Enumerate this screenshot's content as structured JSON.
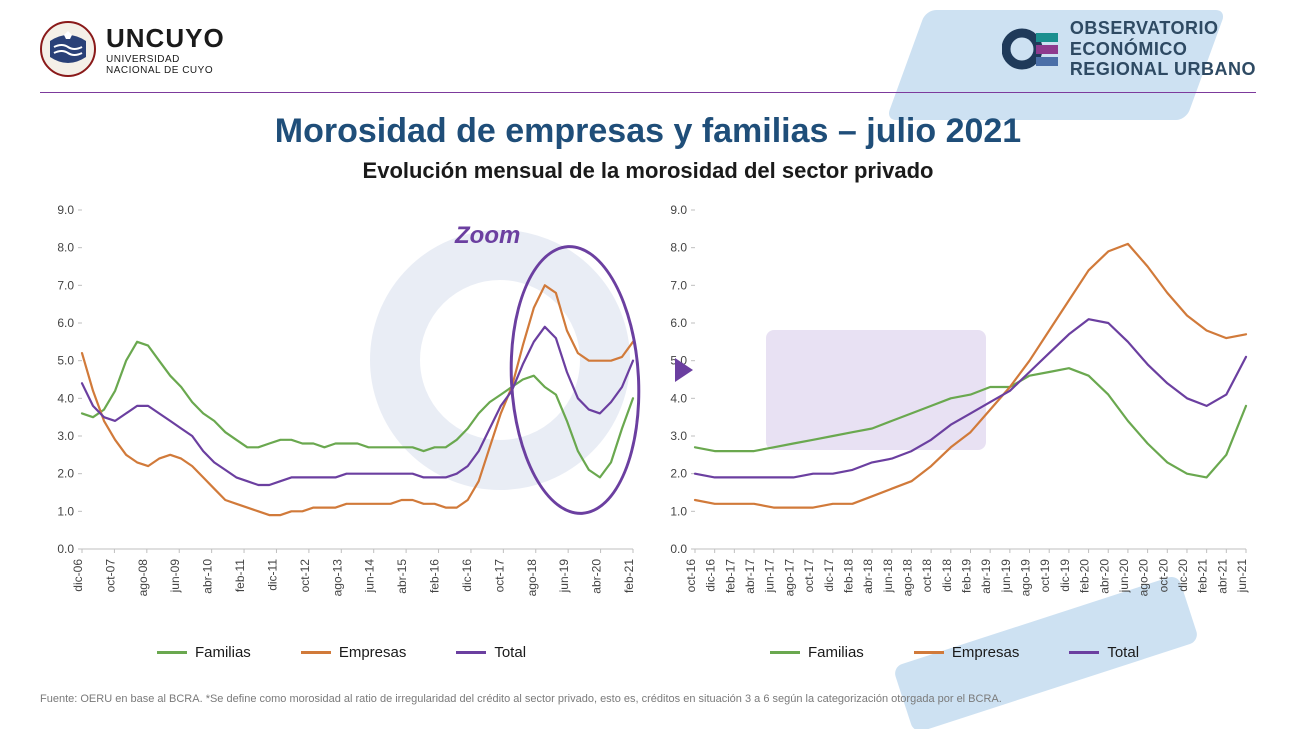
{
  "header": {
    "uncuyo_main": "UNCUYO",
    "uncuyo_sub1": "UNIVERSIDAD",
    "uncuyo_sub2": "NACIONAL DE CUYO",
    "oeru_line1": "OBSERVATORIO",
    "oeru_line2": "ECONÓMICO",
    "oeru_line3": "REGIONAL URBANO",
    "oeru_colors": [
      "#1a8f8f",
      "#8e3a8e",
      "#4b6fa8"
    ]
  },
  "title": "Morosidad  de empresas y familias – julio 2021",
  "subtitle": "Evolución mensual de la morosidad del sector privado",
  "zoom_label": "Zoom",
  "footnote": "Fuente: OERU en base al BCRA. *Se define como morosidad al ratio de irregularidad del crédito al sector privado, esto es, créditos en  situación 3 a 6 según la categorización otorgada por el BCRA.",
  "colors": {
    "familias": "#6aa84f",
    "empresas": "#d17a3a",
    "total": "#6b3fa0",
    "grid": "#bfbfbf",
    "axis_text": "#444444",
    "zoom_ring": "#6b3fa0"
  },
  "legend": {
    "familias": "Familias",
    "empresas": "Empresas",
    "total": "Total"
  },
  "chart_left": {
    "type": "line",
    "ylim": [
      0.0,
      9.0
    ],
    "ytick_step": 1.0,
    "line_width": 2.2,
    "axis_fontsize": 12,
    "xlabels": [
      "dic-06",
      "oct-07",
      "ago-08",
      "jun-09",
      "abr-10",
      "feb-11",
      "dic-11",
      "oct-12",
      "ago-13",
      "jun-14",
      "abr-15",
      "feb-16",
      "dic-16",
      "oct-17",
      "ago-18",
      "jun-19",
      "abr-20",
      "feb-21"
    ],
    "series": {
      "familias": [
        3.6,
        3.6,
        4.6,
        5.4,
        4.3,
        3.4,
        2.7,
        2.8,
        2.8,
        2.8,
        2.7,
        2.7,
        2.6,
        2.9,
        3.6,
        4.3,
        4.1,
        1.9
      ],
      "empresas": [
        5.2,
        2.9,
        2.2,
        2.5,
        1.9,
        1.2,
        0.9,
        1.0,
        1.1,
        1.2,
        1.2,
        1.3,
        1.2,
        1.1,
        1.8,
        4.3,
        6.8,
        5.0
      ],
      "total": [
        4.4,
        3.2,
        3.2,
        3.8,
        3.0,
        2.1,
        1.7,
        1.8,
        1.9,
        2.0,
        2.0,
        2.0,
        1.9,
        2.0,
        2.6,
        4.2,
        5.6,
        3.6
      ]
    },
    "series_extra": {
      "familias": [
        3.6,
        3.5,
        3.7,
        4.2,
        5.0,
        5.5,
        5.4,
        5.0,
        4.6,
        4.3,
        3.9,
        3.6,
        3.4,
        3.1,
        2.9,
        2.7,
        2.7,
        2.8,
        2.9,
        2.9,
        2.8,
        2.8,
        2.7,
        2.8,
        2.8,
        2.8,
        2.7,
        2.7,
        2.7,
        2.7,
        2.7,
        2.6,
        2.7,
        2.7,
        2.9,
        3.2,
        3.6,
        3.9,
        4.1,
        4.3,
        4.5,
        4.6,
        4.3,
        4.1,
        3.4,
        2.6,
        2.1,
        1.9,
        2.3,
        3.2,
        4.0
      ],
      "empresas": [
        5.2,
        4.2,
        3.4,
        2.9,
        2.5,
        2.3,
        2.2,
        2.4,
        2.5,
        2.4,
        2.2,
        1.9,
        1.6,
        1.3,
        1.2,
        1.1,
        1.0,
        0.9,
        0.9,
        1.0,
        1.0,
        1.1,
        1.1,
        1.1,
        1.2,
        1.2,
        1.2,
        1.2,
        1.2,
        1.3,
        1.3,
        1.2,
        1.2,
        1.1,
        1.1,
        1.3,
        1.8,
        2.7,
        3.6,
        4.3,
        5.4,
        6.4,
        7.0,
        6.8,
        5.8,
        5.2,
        5.0,
        5.0,
        5.0,
        5.1,
        5.5
      ],
      "total": [
        4.4,
        3.8,
        3.5,
        3.4,
        3.6,
        3.8,
        3.8,
        3.6,
        3.4,
        3.2,
        3.0,
        2.6,
        2.3,
        2.1,
        1.9,
        1.8,
        1.7,
        1.7,
        1.8,
        1.9,
        1.9,
        1.9,
        1.9,
        1.9,
        2.0,
        2.0,
        2.0,
        2.0,
        2.0,
        2.0,
        2.0,
        1.9,
        1.9,
        1.9,
        2.0,
        2.2,
        2.6,
        3.2,
        3.8,
        4.2,
        4.9,
        5.5,
        5.9,
        5.6,
        4.7,
        4.0,
        3.7,
        3.6,
        3.9,
        4.3,
        5.0
      ]
    }
  },
  "chart_right": {
    "type": "line",
    "ylim": [
      0.0,
      9.0
    ],
    "ytick_step": 1.0,
    "line_width": 2.2,
    "axis_fontsize": 12,
    "xlabels": [
      "oct-16",
      "dic-16",
      "feb-17",
      "abr-17",
      "jun-17",
      "ago-17",
      "oct-17",
      "dic-17",
      "feb-18",
      "abr-18",
      "jun-18",
      "ago-18",
      "oct-18",
      "dic-18",
      "feb-19",
      "abr-19",
      "jun-19",
      "ago-19",
      "oct-19",
      "dic-19",
      "feb-20",
      "abr-20",
      "jun-20",
      "ago-20",
      "oct-20",
      "dic-20",
      "feb-21",
      "abr-21",
      "jun-21"
    ],
    "series": {
      "familias": [
        2.7,
        2.6,
        2.6,
        2.6,
        2.7,
        2.8,
        2.9,
        3.0,
        3.1,
        3.2,
        3.4,
        3.6,
        3.8,
        4.0,
        4.1,
        4.3,
        4.3,
        4.6,
        4.7,
        4.8,
        4.6,
        4.1,
        3.4,
        2.8,
        2.3,
        2.0,
        1.9,
        2.5,
        3.8
      ],
      "empresas": [
        1.3,
        1.2,
        1.2,
        1.2,
        1.1,
        1.1,
        1.1,
        1.2,
        1.2,
        1.4,
        1.6,
        1.8,
        2.2,
        2.7,
        3.1,
        3.7,
        4.3,
        5.0,
        5.8,
        6.6,
        7.4,
        7.9,
        8.1,
        7.5,
        6.8,
        6.2,
        5.8,
        5.6,
        5.7
      ],
      "total": [
        2.0,
        1.9,
        1.9,
        1.9,
        1.9,
        1.9,
        2.0,
        2.0,
        2.1,
        2.3,
        2.4,
        2.6,
        2.9,
        3.3,
        3.6,
        3.9,
        4.2,
        4.7,
        5.2,
        5.7,
        6.1,
        6.0,
        5.5,
        4.9,
        4.4,
        4.0,
        3.8,
        4.1,
        5.1
      ]
    }
  }
}
